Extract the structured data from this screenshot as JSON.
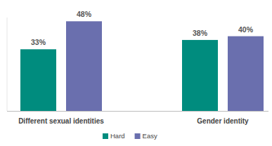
{
  "chart_data": {
    "type": "bar",
    "categories": [
      "Different sexual identities",
      "Gender identity"
    ],
    "series": [
      {
        "name": "Hard",
        "color": "#008c7e",
        "values": [
          33,
          38
        ],
        "value_labels": [
          "33%",
          "38%"
        ]
      },
      {
        "name": "Easy",
        "color": "#6a6fae",
        "values": [
          48,
          40
        ],
        "value_labels": [
          "48%",
          "40%"
        ]
      }
    ],
    "ylim": [
      0,
      50
    ],
    "yticks": [],
    "grid": false,
    "legend": "bottom",
    "data_labels": true,
    "tick_labels": "x"
  }
}
